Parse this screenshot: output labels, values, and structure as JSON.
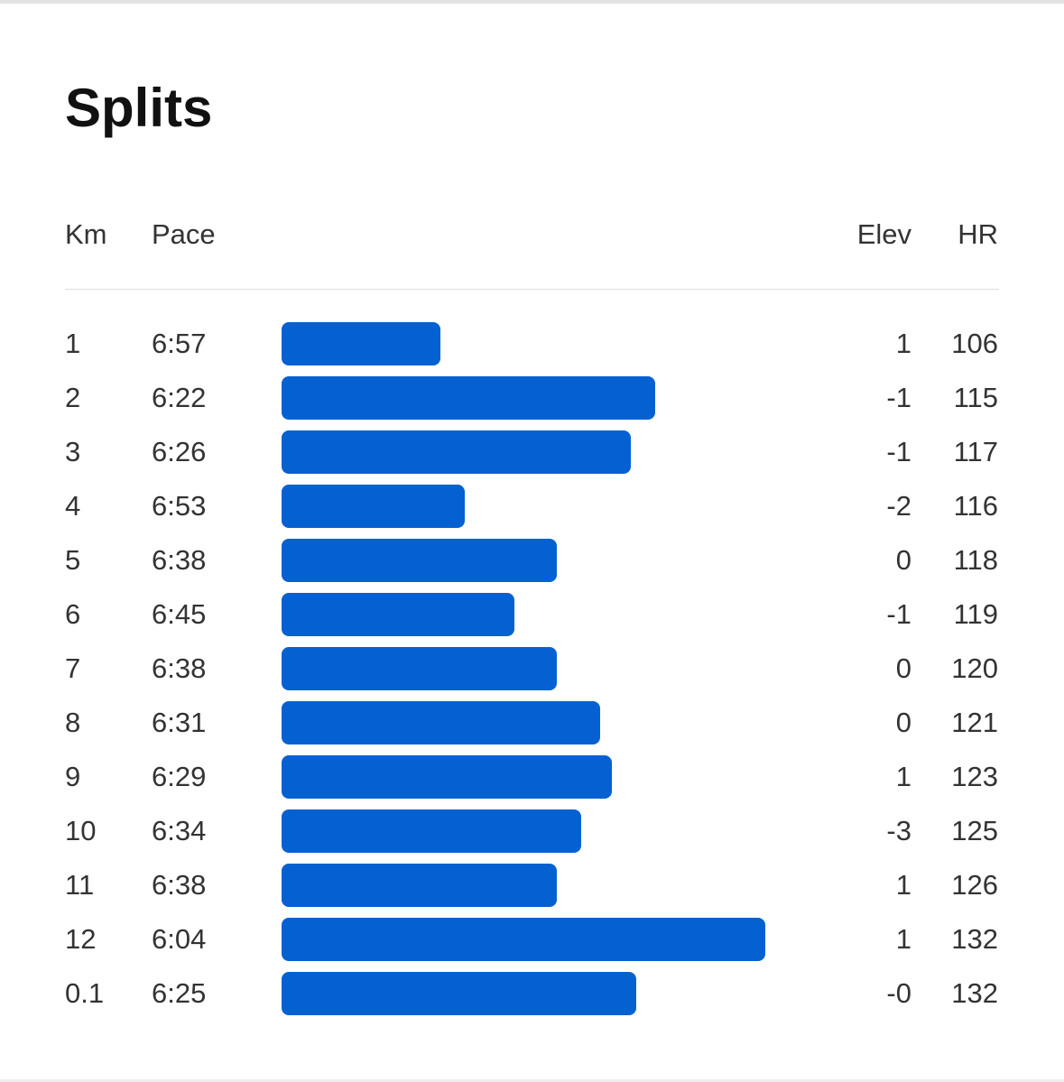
{
  "header": {
    "title": "Splits"
  },
  "table": {
    "columns": [
      "Km",
      "Pace",
      "Elev",
      "HR"
    ],
    "rows": [
      {
        "km": "1",
        "pace": {
          "value": 417,
          "label": "6:57"
        },
        "elev": "1",
        "hr": 106
      },
      {
        "km": "2",
        "pace": {
          "value": 382,
          "label": "6:22"
        },
        "elev": "-1",
        "hr": 115
      },
      {
        "km": "3",
        "pace": {
          "value": 386,
          "label": "6:26"
        },
        "elev": "-1",
        "hr": 117
      },
      {
        "km": "4",
        "pace": {
          "value": 413,
          "label": "6:53"
        },
        "elev": "-2",
        "hr": 116
      },
      {
        "km": "5",
        "pace": {
          "value": 398,
          "label": "6:38"
        },
        "elev": "0",
        "hr": 118
      },
      {
        "km": "6",
        "pace": {
          "value": 405,
          "label": "6:45"
        },
        "elev": "-1",
        "hr": 119
      },
      {
        "km": "7",
        "pace": {
          "value": 398,
          "label": "6:38"
        },
        "elev": "0",
        "hr": 120
      },
      {
        "km": "8",
        "pace": {
          "value": 391,
          "label": "6:31"
        },
        "elev": "0",
        "hr": 121
      },
      {
        "km": "9",
        "pace": {
          "value": 389,
          "label": "6:29"
        },
        "elev": "1",
        "hr": 123
      },
      {
        "km": "10",
        "pace": {
          "value": 394,
          "label": "6:34"
        },
        "elev": "-3",
        "hr": 125
      },
      {
        "km": "11",
        "pace": {
          "value": 398,
          "label": "6:38"
        },
        "elev": "1",
        "hr": 126
      },
      {
        "km": "12",
        "pace": {
          "value": 364,
          "label": "6:04"
        },
        "elev": "1",
        "hr": 132
      },
      {
        "km": "0.1",
        "pace": {
          "value": 385,
          "label": "6:25"
        },
        "elev": "-0",
        "hr": 132
      }
    ],
    "bar_color": "#0561d1"
  }
}
